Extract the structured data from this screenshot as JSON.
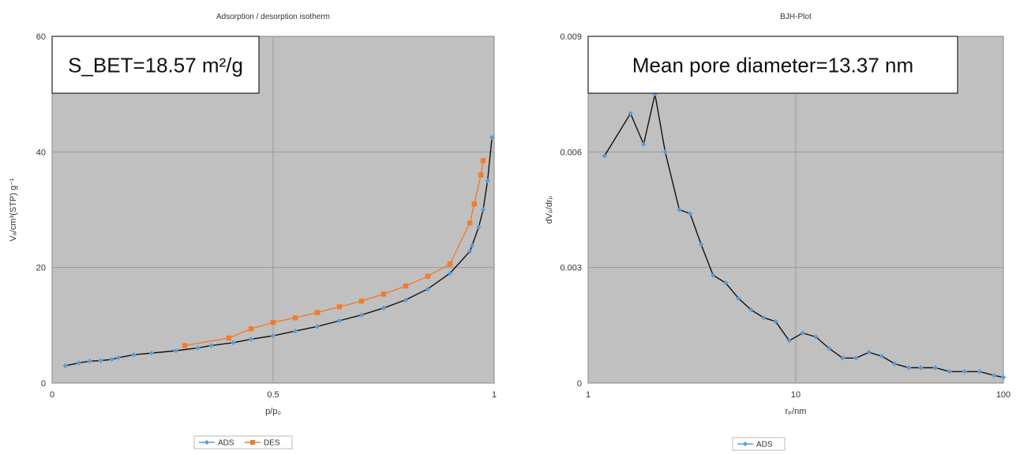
{
  "chart_data": [
    {
      "type": "line",
      "title": "Adsorption / desorption isotherm",
      "xlabel": "p/p₀",
      "ylabel": "Vₐ/cm³(STP) g⁻¹",
      "xlim": [
        0,
        1
      ],
      "ylim": [
        0,
        60
      ],
      "x_ticks": [
        "0",
        "0.5",
        "1"
      ],
      "y_ticks": [
        "0",
        "20",
        "40",
        "60"
      ],
      "grid": true,
      "legend": "bottom",
      "annotation": "S_BET=18.57 m²/g",
      "series": [
        {
          "name": "ADS",
          "color": "#5b9bd5",
          "line_color": "#111111",
          "marker": "diamond",
          "x": [
            0.03,
            0.06,
            0.085,
            0.11,
            0.135,
            0.15,
            0.185,
            0.225,
            0.28,
            0.33,
            0.36,
            0.41,
            0.45,
            0.5,
            0.55,
            0.6,
            0.65,
            0.7,
            0.75,
            0.8,
            0.85,
            0.9,
            0.945,
            0.95,
            0.965,
            0.975,
            0.985,
            0.995
          ],
          "y": [
            3.0,
            3.5,
            3.8,
            3.9,
            4.1,
            4.4,
            4.9,
            5.2,
            5.6,
            6.1,
            6.5,
            7.0,
            7.6,
            8.2,
            9.0,
            9.8,
            10.8,
            11.8,
            13.0,
            14.4,
            16.3,
            19.0,
            22.8,
            23.8,
            27.0,
            30.0,
            35.0,
            42.5
          ]
        },
        {
          "name": "DES",
          "color": "#ed7d31",
          "line_color": "#ed7d31",
          "marker": "square",
          "x": [
            0.3,
            0.4,
            0.45,
            0.5,
            0.55,
            0.6,
            0.65,
            0.7,
            0.75,
            0.8,
            0.85,
            0.9,
            0.945,
            0.955,
            0.97,
            0.975
          ],
          "y": [
            6.5,
            7.8,
            9.4,
            10.5,
            11.3,
            12.2,
            13.2,
            14.2,
            15.4,
            16.8,
            18.5,
            20.6,
            27.7,
            31.0,
            36.0,
            38.5
          ]
        }
      ]
    },
    {
      "type": "line",
      "title": "BJH-Plot",
      "xlabel": "rₚ/nm",
      "ylabel": "dVₚ/drₚ",
      "xscale": "log",
      "xlim": [
        1,
        100
      ],
      "ylim": [
        0,
        0.009
      ],
      "x_ticks": [
        "1",
        "10",
        "100"
      ],
      "y_ticks": [
        "0",
        "0.003",
        "0.006",
        "0.009"
      ],
      "grid": true,
      "legend": "bottom",
      "annotation": "Mean pore diameter=13.37 nm",
      "series": [
        {
          "name": "ADS",
          "color": "#5b9bd5",
          "line_color": "#111111",
          "marker": "diamond",
          "x": [
            1.2,
            1.6,
            1.85,
            2.1,
            2.35,
            2.75,
            3.1,
            3.5,
            4.0,
            4.6,
            5.3,
            6.1,
            7.0,
            8.0,
            9.3,
            10.8,
            12.5,
            14.5,
            16.8,
            19.5,
            22.5,
            26,
            30,
            35,
            40,
            47,
            55,
            65,
            77,
            90,
            100
          ],
          "y": [
            0.0059,
            0.007,
            0.0062,
            0.0075,
            0.006,
            0.0045,
            0.0044,
            0.0036,
            0.0028,
            0.0026,
            0.0022,
            0.0019,
            0.0017,
            0.0016,
            0.0011,
            0.0013,
            0.0012,
            0.0009,
            0.00065,
            0.00065,
            0.0008,
            0.0007,
            0.0005,
            0.0004,
            0.0004,
            0.0004,
            0.0003,
            0.0003,
            0.0003,
            0.0002,
            0.00015
          ]
        }
      ]
    }
  ]
}
